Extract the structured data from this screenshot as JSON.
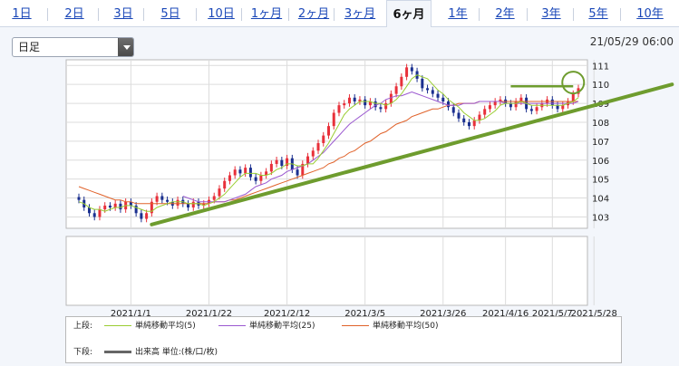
{
  "tabs": [
    {
      "label": "1日",
      "active": false
    },
    {
      "label": "2日",
      "active": false
    },
    {
      "label": "3日",
      "active": false
    },
    {
      "label": "5日",
      "active": false
    },
    {
      "label": "10日",
      "active": false
    },
    {
      "label": "1ヶ月",
      "active": false
    },
    {
      "label": "2ヶ月",
      "active": false
    },
    {
      "label": "3ヶ月",
      "active": false
    },
    {
      "label": "6ヶ月",
      "active": true
    },
    {
      "label": "1年",
      "active": false
    },
    {
      "label": "2年",
      "active": false
    },
    {
      "label": "3年",
      "active": false
    },
    {
      "label": "5年",
      "active": false
    },
    {
      "label": "10年",
      "active": false
    }
  ],
  "period_select": {
    "value": "日足"
  },
  "timestamp": "21/05/29 06:00",
  "legend": {
    "upper_label": "上段:",
    "lower_label": "下段:",
    "items": [
      {
        "name": "単純移動平均(5)",
        "color": "#9acd32"
      },
      {
        "name": "単純移動平均(25)",
        "color": "#9b59d0"
      },
      {
        "name": "単純移動平均(50)",
        "color": "#e0622a"
      }
    ],
    "volume": {
      "name": "出来高 単位:(株/口/枚)",
      "color": "#666666"
    }
  },
  "chart_data": {
    "type": "candlestick",
    "x_ticks": [
      "2021/1/1",
      "2021/1/22",
      "2021/2/12",
      "2021/3/5",
      "2021/3/26",
      "2021/4/16",
      "2021/5/7",
      "2021/5/28"
    ],
    "y_ticks": [
      103,
      104,
      105,
      106,
      107,
      108,
      109,
      110,
      111
    ],
    "ylim": [
      102.4,
      111.3
    ],
    "colors": {
      "up": "#e8303a",
      "down": "#1a2f8f",
      "trendline": "#6e9c2e"
    },
    "close": [
      103.9,
      103.5,
      103.2,
      103.0,
      103.4,
      103.6,
      103.5,
      103.7,
      103.4,
      103.8,
      103.6,
      103.2,
      102.9,
      103.2,
      103.8,
      104.1,
      103.9,
      103.8,
      103.6,
      103.9,
      103.7,
      103.5,
      103.8,
      103.6,
      103.7,
      103.9,
      104.1,
      104.5,
      104.9,
      105.2,
      105.5,
      105.3,
      105.6,
      105.1,
      104.9,
      105.2,
      105.4,
      105.8,
      106.0,
      105.7,
      106.1,
      105.5,
      105.2,
      105.8,
      106.2,
      106.5,
      106.9,
      107.3,
      107.8,
      108.5,
      108.9,
      109.0,
      109.3,
      109.1,
      109.2,
      108.9,
      109.1,
      108.8,
      108.7,
      109.0,
      109.5,
      109.9,
      110.4,
      110.9,
      110.7,
      110.3,
      109.8,
      109.7,
      109.5,
      109.3,
      109.1,
      108.8,
      108.5,
      108.2,
      108.0,
      107.8,
      108.1,
      108.4,
      108.7,
      108.9,
      109.1,
      109.2,
      109.0,
      108.8,
      109.1,
      109.3,
      108.7,
      108.6,
      108.8,
      109.0,
      109.2,
      108.9,
      108.7,
      108.9,
      109.1,
      109.5,
      109.8
    ],
    "ma5": [
      103.8,
      103.7,
      103.5,
      103.4,
      103.4,
      103.3,
      103.4,
      103.5,
      103.5,
      103.6,
      103.6,
      103.5,
      103.4,
      103.3,
      103.3,
      103.5,
      103.6,
      103.7,
      103.8,
      103.8,
      103.8,
      103.7,
      103.7,
      103.7,
      103.6,
      103.7,
      103.8,
      104.0,
      104.2,
      104.5,
      104.8,
      105.1,
      105.3,
      105.3,
      105.3,
      105.2,
      105.2,
      105.3,
      105.5,
      105.6,
      105.8,
      105.8,
      105.7,
      105.7,
      105.8,
      105.8,
      106.1,
      106.5,
      106.9,
      107.4,
      107.9,
      108.4,
      108.7,
      108.9,
      109.1,
      109.1,
      109.1,
      109.0,
      109.0,
      108.9,
      109.0,
      109.2,
      109.5,
      109.9,
      110.3,
      110.5,
      110.4,
      110.3,
      110.0,
      109.7,
      109.5,
      109.2,
      109.0,
      108.8,
      108.5,
      108.3,
      108.1,
      108.1,
      108.2,
      108.4,
      108.6,
      108.9,
      109.0,
      109.0,
      109.0,
      109.1,
      109.0,
      108.9,
      108.9,
      108.9,
      108.9,
      108.9,
      108.9,
      108.9,
      109.0,
      109.1,
      109.3
    ],
    "ma25_start": 20,
    "ma25": [
      104.1,
      104.0,
      103.9,
      103.8,
      103.8,
      103.8,
      103.8,
      103.8,
      103.8,
      103.9,
      104.0,
      104.1,
      104.2,
      104.4,
      104.6,
      104.7,
      104.8,
      105.0,
      105.1,
      105.2,
      105.4,
      105.5,
      105.6,
      105.7,
      105.8,
      106.0,
      106.2,
      106.4,
      106.7,
      107.0,
      107.3,
      107.6,
      107.9,
      108.1,
      108.3,
      108.5,
      108.7,
      108.9,
      109.0,
      109.2,
      109.3,
      109.4,
      109.4,
      109.5,
      109.6,
      109.5,
      109.4,
      109.3,
      109.2,
      109.1,
      109.0,
      108.9,
      108.9,
      108.9,
      109.0,
      109.0,
      109.0,
      109.1,
      109.1,
      109.1,
      109.1,
      109.1,
      109.0,
      109.0,
      109.0,
      109.0,
      109.0,
      109.0,
      109.0,
      109.0,
      109.0,
      109.0,
      109.0,
      109.0,
      109.0,
      109.0,
      109.1
    ],
    "ma50": [
      104.6,
      104.5,
      104.4,
      104.3,
      104.2,
      104.1,
      104.0,
      103.9,
      103.9,
      103.8,
      103.8,
      103.7,
      103.7,
      103.7,
      103.7,
      103.7,
      103.7,
      103.7,
      103.7,
      103.7,
      103.7,
      103.7,
      103.7,
      103.7,
      103.7,
      103.7,
      103.8,
      103.8,
      103.8,
      103.9,
      103.9,
      104.0,
      104.1,
      104.2,
      104.3,
      104.4,
      104.5,
      104.6,
      104.7,
      104.8,
      104.9,
      105.0,
      105.1,
      105.2,
      105.3,
      105.4,
      105.5,
      105.6,
      105.8,
      105.9,
      106.1,
      106.2,
      106.4,
      106.5,
      106.7,
      106.9,
      107.0,
      107.2,
      107.4,
      107.5,
      107.7,
      107.9,
      108.0,
      108.1,
      108.3,
      108.4,
      108.5,
      108.6,
      108.7,
      108.7,
      108.8,
      108.9,
      108.9,
      109.0,
      109.0,
      109.0,
      109.0,
      109.1,
      109.1,
      109.1,
      109.1,
      109.1,
      109.1,
      109.1,
      109.1,
      109.1,
      109.1,
      109.1,
      109.1,
      109.1,
      109.1,
      109.1,
      109.1,
      109.1,
      109.1,
      109.1,
      109.1
    ],
    "trendline": [
      {
        "i": 14,
        "v": 102.6
      },
      {
        "i": 114,
        "v": 110.0
      }
    ],
    "resistance": [
      {
        "i": 83,
        "v": 109.9
      },
      {
        "i": 95,
        "v": 109.9
      }
    ],
    "circle": {
      "i": 95,
      "v": 110.1
    }
  }
}
